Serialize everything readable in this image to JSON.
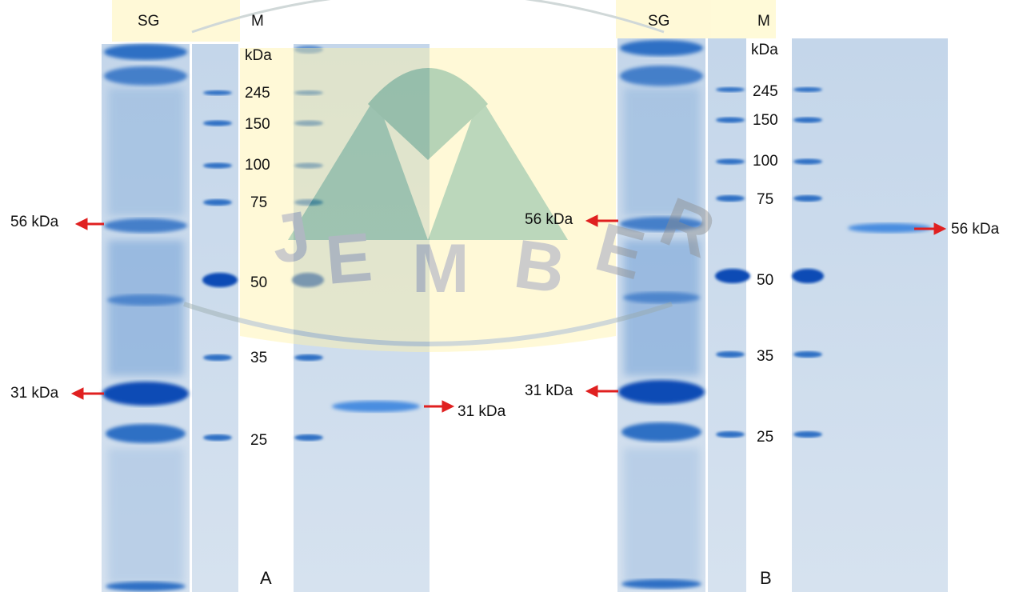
{
  "panels": [
    {
      "letter": "A",
      "lane_headers": {
        "sample": "SG",
        "marker": "M"
      },
      "marker_unit": "kDa",
      "marker_ladder": [
        {
          "label": "245"
        },
        {
          "label": "150"
        },
        {
          "label": "100"
        },
        {
          "label": "75"
        },
        {
          "label": "50"
        },
        {
          "label": "35"
        },
        {
          "label": "25"
        }
      ],
      "annotations": [
        {
          "text": "56 kDa",
          "direction": "left"
        },
        {
          "text": "31 kDa",
          "direction": "left"
        },
        {
          "text": "31 kDa",
          "direction": "right"
        }
      ]
    },
    {
      "letter": "B",
      "lane_headers": {
        "sample": "SG",
        "marker": "M"
      },
      "marker_unit": "kDa",
      "marker_ladder": [
        {
          "label": "245"
        },
        {
          "label": "150"
        },
        {
          "label": "100"
        },
        {
          "label": "75"
        },
        {
          "label": "50"
        },
        {
          "label": "35"
        },
        {
          "label": "25"
        }
      ],
      "annotations": [
        {
          "text": "56 kDa",
          "direction": "left"
        },
        {
          "text": "31 kDa",
          "direction": "left"
        },
        {
          "text": "56 kDa",
          "direction": "right"
        }
      ]
    }
  ],
  "colors": {
    "gel_background": "#c9d8ea",
    "band": "#1f5fbf",
    "arrow": "#e02020",
    "watermark_yellow": "#fff3a8",
    "watermark_green": "#3c8a3c"
  }
}
